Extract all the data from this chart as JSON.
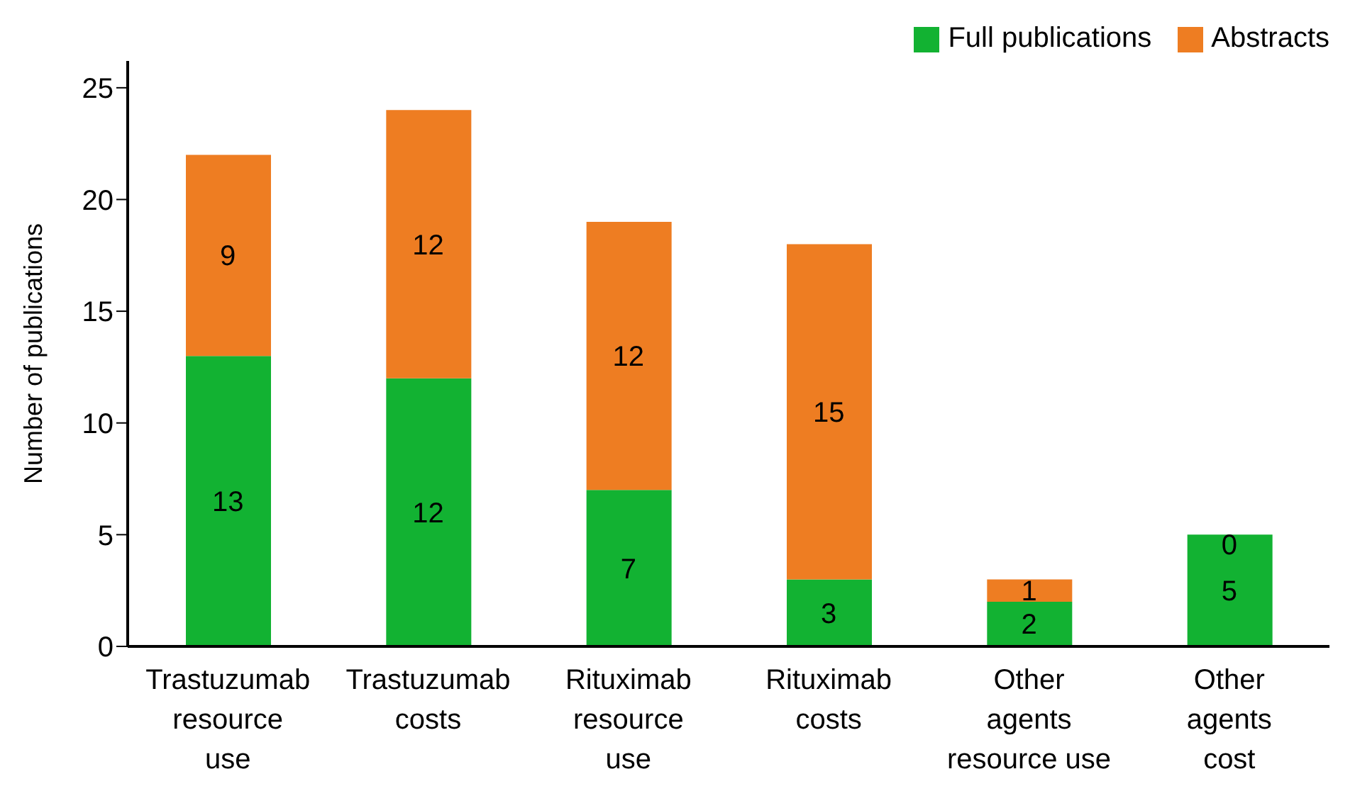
{
  "chart_data": {
    "type": "bar",
    "stacked": true,
    "ylabel": "Number of publications",
    "categories": [
      "Trastuzumab\nresource\nuse",
      "Trastuzumab\ncosts",
      "Rituximab\nresource\nuse",
      "Rituximab\ncosts",
      "Other\nagents\nresource use",
      "Other\nagents\ncost"
    ],
    "series": [
      {
        "name": "Full publications",
        "color": "#12b232",
        "values": [
          13,
          12,
          7,
          3,
          2,
          5
        ]
      },
      {
        "name": "Abstracts",
        "color": "#ee7d22",
        "values": [
          9,
          12,
          12,
          15,
          1,
          0
        ]
      }
    ],
    "ylim": [
      0,
      26.2
    ],
    "yticks": [
      0,
      5,
      10,
      15,
      20,
      25
    ],
    "data_labels": true,
    "legend": "top right",
    "grid": false
  }
}
